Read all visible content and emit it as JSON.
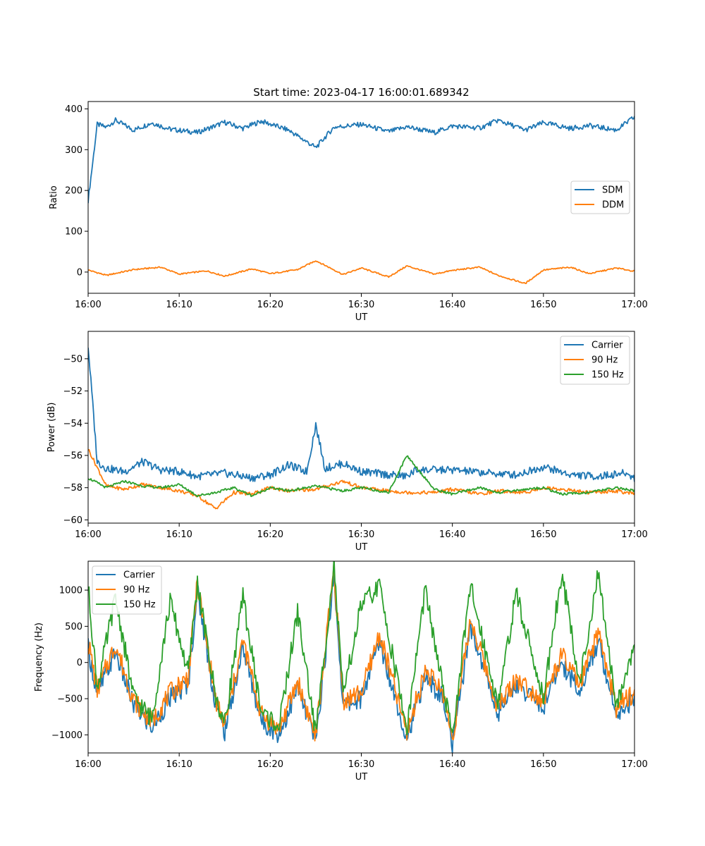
{
  "figure": {
    "title": "Start time: 2023-04-17 16:00:01.689342"
  },
  "colors": {
    "blue": "#1f77b4",
    "orange": "#ff7f0e",
    "green": "#2ca02c"
  },
  "chart_data": [
    {
      "type": "line",
      "title": "Start time: 2023-04-17 16:00:01.689342",
      "xlabel": "UT",
      "ylabel": "Ratio",
      "xlim": [
        "16:00",
        "17:00"
      ],
      "xticks": [
        "16:00",
        "16:10",
        "16:20",
        "16:30",
        "16:40",
        "16:50",
        "17:00"
      ],
      "ylim": [
        -52,
        418
      ],
      "yticks": [
        0,
        100,
        200,
        300,
        400
      ],
      "yticklabels": [
        "0",
        "100",
        "200",
        "300",
        "400"
      ],
      "grid": false,
      "legend_position": "center-right",
      "series": [
        {
          "name": "SDM",
          "color": "#1f77b4",
          "x": [
            "16:00",
            "16:01",
            "16:02",
            "16:03",
            "16:05",
            "16:07",
            "16:09",
            "16:12",
            "16:15",
            "16:17",
            "16:19",
            "16:22",
            "16:25",
            "16:27",
            "16:30",
            "16:33",
            "16:35",
            "16:38",
            "16:40",
            "16:43",
            "16:45",
            "16:48",
            "16:50",
            "16:53",
            "16:55",
            "16:58",
            "17:00"
          ],
          "values": [
            175,
            362,
            355,
            372,
            348,
            366,
            350,
            342,
            367,
            352,
            370,
            348,
            305,
            355,
            362,
            344,
            356,
            342,
            358,
            353,
            372,
            348,
            366,
            352,
            359,
            348,
            380
          ]
        },
        {
          "name": "DDM",
          "color": "#ff7f0e",
          "x": [
            "16:00",
            "16:02",
            "16:05",
            "16:08",
            "16:10",
            "16:13",
            "16:15",
            "16:18",
            "16:20",
            "16:23",
            "16:25",
            "16:28",
            "16:30",
            "16:33",
            "16:35",
            "16:38",
            "16:40",
            "16:43",
            "16:45",
            "16:48",
            "16:50",
            "16:53",
            "16:55",
            "16:58",
            "17:00"
          ],
          "values": [
            5,
            -8,
            6,
            12,
            -5,
            3,
            -10,
            8,
            -4,
            6,
            28,
            -6,
            10,
            -12,
            15,
            -5,
            4,
            12,
            -8,
            -28,
            5,
            12,
            -4,
            10,
            2
          ]
        }
      ]
    },
    {
      "type": "line",
      "xlabel": "UT",
      "ylabel": "Power (dB)",
      "xlim": [
        "16:00",
        "17:00"
      ],
      "xticks": [
        "16:00",
        "16:10",
        "16:20",
        "16:30",
        "16:40",
        "16:50",
        "17:00"
      ],
      "ylim": [
        -60.2,
        -48.3
      ],
      "yticks": [
        -60,
        -58,
        -56,
        -54,
        -52,
        -50
      ],
      "yticklabels": [
        "−60",
        "−58",
        "−56",
        "−54",
        "−52",
        "−50"
      ],
      "grid": false,
      "legend_position": "upper-right",
      "series": [
        {
          "name": "Carrier",
          "color": "#1f77b4",
          "x": [
            "16:00",
            "16:00",
            "16:01",
            "16:02",
            "16:04",
            "16:06",
            "16:08",
            "16:10",
            "16:12",
            "16:15",
            "16:18",
            "16:20",
            "16:22",
            "16:24",
            "16:25",
            "16:26",
            "16:28",
            "16:30",
            "16:33",
            "16:35",
            "16:36",
            "16:40",
            "16:44",
            "16:47",
            "16:50",
            "16:53",
            "16:56",
            "16:59",
            "17:00"
          ],
          "values": [
            -56.6,
            -49.2,
            -56.4,
            -56.8,
            -57.0,
            -56.4,
            -56.9,
            -57.0,
            -57.3,
            -57.1,
            -57.4,
            -57.2,
            -56.6,
            -57.0,
            -54.1,
            -56.8,
            -56.5,
            -57.0,
            -57.2,
            -57.3,
            -56.9,
            -56.9,
            -57.1,
            -57.2,
            -56.7,
            -57.2,
            -57.3,
            -57.1,
            -57.4
          ]
        },
        {
          "name": "90 Hz",
          "color": "#ff7f0e",
          "x": [
            "16:00",
            "16:00",
            "16:02",
            "16:04",
            "16:06",
            "16:08",
            "16:10",
            "16:12",
            "16:14",
            "16:16",
            "16:18",
            "16:20",
            "16:22",
            "16:25",
            "16:28",
            "16:30",
            "16:33",
            "16:35",
            "16:38",
            "16:40",
            "16:43",
            "16:45",
            "16:48",
            "16:50",
            "16:52",
            "16:55",
            "16:58",
            "17:00"
          ],
          "values": [
            -57.8,
            -55.6,
            -57.9,
            -58.1,
            -57.8,
            -58.0,
            -58.2,
            -58.5,
            -59.3,
            -58.3,
            -58.4,
            -58.0,
            -58.2,
            -58.1,
            -57.6,
            -58.0,
            -58.2,
            -58.3,
            -58.3,
            -58.1,
            -58.4,
            -58.2,
            -58.3,
            -58.0,
            -58.1,
            -58.3,
            -58.2,
            -58.4
          ]
        },
        {
          "name": "150 Hz",
          "color": "#2ca02c",
          "x": [
            "16:00",
            "16:02",
            "16:04",
            "16:06",
            "16:08",
            "16:10",
            "16:12",
            "16:14",
            "16:16",
            "16:18",
            "16:20",
            "16:22",
            "16:25",
            "16:28",
            "16:30",
            "16:33",
            "16:35",
            "16:38",
            "16:40",
            "16:43",
            "16:45",
            "16:48",
            "16:50",
            "16:52",
            "16:55",
            "16:58",
            "17:00"
          ],
          "values": [
            -57.4,
            -58.0,
            -57.6,
            -57.9,
            -58.0,
            -57.8,
            -58.5,
            -58.3,
            -58.0,
            -58.5,
            -58.0,
            -58.2,
            -57.9,
            -58.2,
            -58.0,
            -58.3,
            -56.0,
            -58.1,
            -58.4,
            -58.0,
            -58.3,
            -58.1,
            -58.0,
            -58.4,
            -58.3,
            -58.0,
            -58.2
          ]
        }
      ]
    },
    {
      "type": "line",
      "xlabel": "UT",
      "ylabel": "Frequency (Hz)",
      "xlim": [
        "16:00",
        "17:00"
      ],
      "xticks": [
        "16:00",
        "16:10",
        "16:20",
        "16:30",
        "16:40",
        "16:50",
        "17:00"
      ],
      "ylim": [
        -1250,
        1400
      ],
      "yticks": [
        -1000,
        -500,
        0,
        500,
        1000
      ],
      "yticklabels": [
        "−1000",
        "−500",
        "0",
        "500",
        "1000"
      ],
      "grid": false,
      "legend_position": "upper-left",
      "series": [
        {
          "name": "Carrier",
          "color": "#1f77b4",
          "x": [
            "16:00",
            "16:01",
            "16:03",
            "16:05",
            "16:07",
            "16:09",
            "16:11",
            "16:12",
            "16:14",
            "16:15",
            "16:17",
            "16:19",
            "16:21",
            "16:23",
            "16:25",
            "16:27",
            "16:28",
            "16:30",
            "16:32",
            "16:35",
            "16:37",
            "16:39",
            "16:40",
            "16:42",
            "16:45",
            "16:47",
            "16:50",
            "16:52",
            "16:54",
            "16:56",
            "16:58",
            "17:00"
          ],
          "values": [
            200,
            -450,
            150,
            -600,
            -900,
            -500,
            -300,
            1000,
            -600,
            -950,
            200,
            -800,
            -1000,
            -350,
            -1100,
            1200,
            -600,
            -500,
            300,
            -1050,
            -200,
            -500,
            -1150,
            500,
            -700,
            -300,
            -600,
            0,
            -400,
            300,
            -700,
            -500
          ]
        },
        {
          "name": "90 Hz",
          "color": "#ff7f0e",
          "x": [
            "16:00",
            "16:01",
            "16:03",
            "16:05",
            "16:07",
            "16:09",
            "16:11",
            "16:12",
            "16:14",
            "16:15",
            "16:17",
            "16:19",
            "16:21",
            "16:23",
            "16:25",
            "16:27",
            "16:28",
            "16:30",
            "16:32",
            "16:35",
            "16:37",
            "16:39",
            "16:40",
            "16:42",
            "16:45",
            "16:47",
            "16:50",
            "16:52",
            "16:54",
            "16:56",
            "16:58",
            "17:00"
          ],
          "values": [
            300,
            -380,
            250,
            -520,
            -820,
            -420,
            -200,
            1100,
            -520,
            -880,
            300,
            -720,
            -920,
            -260,
            -1020,
            1300,
            -520,
            -420,
            400,
            -970,
            -110,
            -420,
            -1060,
            600,
            -620,
            -220,
            -520,
            100,
            -320,
            400,
            -620,
            -420
          ]
        },
        {
          "name": "150 Hz",
          "color": "#2ca02c",
          "x": [
            "16:00",
            "16:01",
            "16:03",
            "16:05",
            "16:07",
            "16:09",
            "16:11",
            "16:12",
            "16:14",
            "16:15",
            "16:17",
            "16:19",
            "16:21",
            "16:23",
            "16:25",
            "16:27",
            "16:28",
            "16:30",
            "16:32",
            "16:35",
            "16:37",
            "16:39",
            "16:40",
            "16:42",
            "16:45",
            "16:47",
            "16:50",
            "16:52",
            "16:54",
            "16:56",
            "16:58",
            "17:00"
          ],
          "values": [
            1050,
            -350,
            900,
            -480,
            -780,
            850,
            -150,
            1100,
            -480,
            -850,
            900,
            -680,
            -880,
            700,
            -980,
            1350,
            -480,
            800,
            1050,
            -930,
            1000,
            -380,
            -1000,
            1050,
            -580,
            950,
            -480,
            1250,
            -280,
            1200,
            -580,
            250
          ]
        }
      ]
    }
  ]
}
